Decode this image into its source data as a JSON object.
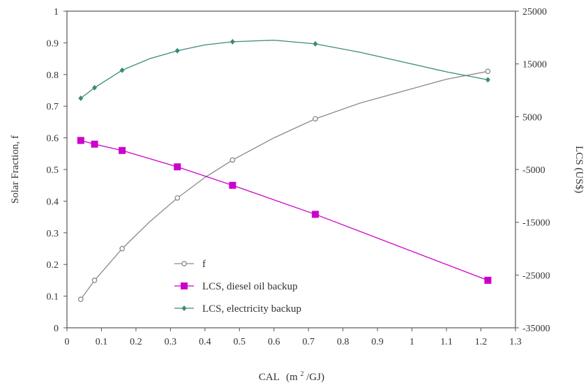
{
  "chart_data": {
    "type": "line",
    "xlabel": "CAL",
    "xlabel_unit_prefix": "(m",
    "xlabel_unit_sup": "2",
    "xlabel_unit_suffix": "/GJ)",
    "ylabel_left": "Solar Fraction, f",
    "ylabel_right": "LCS (US$)",
    "xlim": [
      0,
      1.3
    ],
    "ylim_left": [
      0,
      1
    ],
    "ylim_right": [
      -35000,
      25000
    ],
    "x_ticks": [
      "0",
      "0.1",
      "0.2",
      "0.3",
      "0.4",
      "0.5",
      "0.6",
      "0.7",
      "0.8",
      "0.9",
      "1",
      "1.1",
      "1.2",
      "1.3"
    ],
    "y_left_ticks": [
      "0",
      "0.1",
      "0.2",
      "0.3",
      "0.4",
      "0.5",
      "0.6",
      "0.7",
      "0.8",
      "0.9",
      "1"
    ],
    "y_right_ticks": [
      "-35000",
      "-25000",
      "-15000",
      "-5000",
      "5000",
      "15000",
      "25000"
    ],
    "legend_position": "bottom-left",
    "series": [
      {
        "name": "f",
        "axis": "left",
        "color": "#8a8a8a",
        "marker": "open-circle",
        "points": [
          [
            0.04,
            0.09
          ],
          [
            0.08,
            0.15
          ],
          [
            0.16,
            0.25
          ],
          [
            0.32,
            0.41
          ],
          [
            0.48,
            0.53
          ],
          [
            0.72,
            0.66
          ],
          [
            1.22,
            0.81
          ]
        ],
        "curve": [
          [
            0.04,
            0.09
          ],
          [
            0.08,
            0.15
          ],
          [
            0.12,
            0.2
          ],
          [
            0.16,
            0.25
          ],
          [
            0.24,
            0.335
          ],
          [
            0.32,
            0.41
          ],
          [
            0.4,
            0.475
          ],
          [
            0.48,
            0.53
          ],
          [
            0.6,
            0.6
          ],
          [
            0.72,
            0.66
          ],
          [
            0.85,
            0.71
          ],
          [
            1.0,
            0.755
          ],
          [
            1.1,
            0.785
          ],
          [
            1.22,
            0.81
          ]
        ]
      },
      {
        "name": "LCS,  diesel oil backup",
        "axis": "right",
        "color": "#cc00cc",
        "marker": "square",
        "points": [
          [
            0.04,
            500
          ],
          [
            0.08,
            -200
          ],
          [
            0.16,
            -1400
          ],
          [
            0.32,
            -4500
          ],
          [
            0.48,
            -8000
          ],
          [
            0.72,
            -13500
          ],
          [
            1.22,
            -26000
          ]
        ],
        "curve": [
          [
            0.04,
            500
          ],
          [
            0.08,
            -200
          ],
          [
            0.16,
            -1400
          ],
          [
            0.32,
            -4500
          ],
          [
            0.48,
            -8000
          ],
          [
            0.72,
            -13500
          ],
          [
            1.22,
            -26000
          ]
        ]
      },
      {
        "name": "LCS,  electricity backup",
        "axis": "right",
        "color": "#3a8a7a",
        "marker": "small-diamond",
        "points": [
          [
            0.04,
            8500
          ],
          [
            0.08,
            10500
          ],
          [
            0.16,
            13800
          ],
          [
            0.32,
            17500
          ],
          [
            0.48,
            19200
          ],
          [
            0.72,
            18800
          ],
          [
            1.22,
            12000
          ]
        ],
        "curve": [
          [
            0.04,
            8500
          ],
          [
            0.08,
            10500
          ],
          [
            0.16,
            13800
          ],
          [
            0.24,
            16000
          ],
          [
            0.32,
            17500
          ],
          [
            0.4,
            18600
          ],
          [
            0.48,
            19200
          ],
          [
            0.6,
            19500
          ],
          [
            0.72,
            18800
          ],
          [
            0.85,
            17200
          ],
          [
            1.0,
            15000
          ],
          [
            1.1,
            13500
          ],
          [
            1.22,
            12000
          ]
        ]
      }
    ]
  }
}
